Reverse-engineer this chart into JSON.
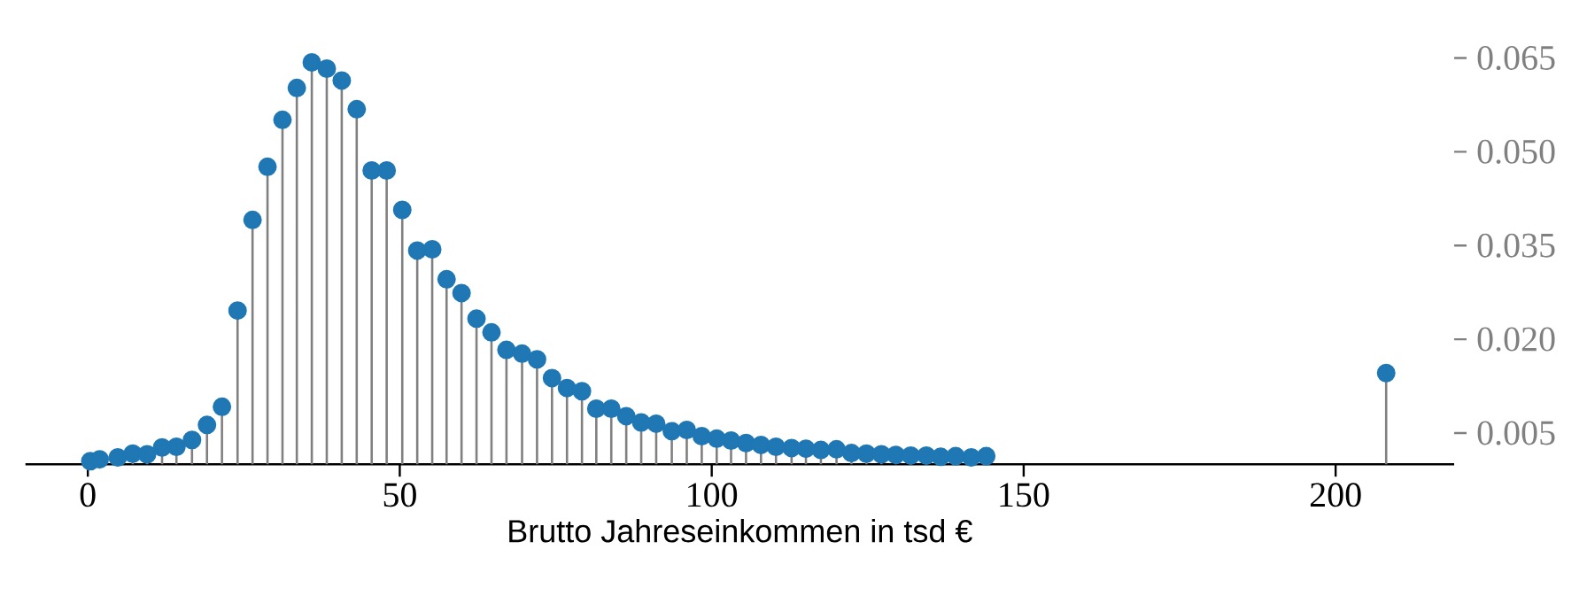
{
  "chart_data": {
    "type": "lollipop",
    "xlabel": "Brutto Jahreseinkommen in tsd €",
    "x": [
      0.4,
      1.9,
      4.8,
      7.2,
      9.5,
      11.9,
      14.2,
      16.7,
      19.1,
      21.5,
      24.0,
      26.4,
      28.8,
      31.2,
      33.5,
      35.9,
      38.3,
      40.7,
      43.1,
      45.5,
      47.9,
      50.4,
      52.8,
      55.2,
      57.5,
      59.9,
      62.3,
      64.7,
      67.1,
      69.6,
      72.0,
      74.4,
      76.8,
      79.2,
      81.5,
      83.9,
      86.3,
      88.7,
      91.1,
      93.6,
      96.0,
      98.4,
      100.8,
      103.1,
      105.5,
      107.9,
      110.3,
      112.8,
      115.1,
      117.5,
      120.0,
      122.4,
      124.8,
      127.2,
      129.5,
      131.9,
      134.4,
      136.7,
      139.1,
      141.6,
      144.0,
      208.1
    ],
    "values": [
      0.0005,
      0.0008,
      0.0011,
      0.0017,
      0.0016,
      0.0027,
      0.0028,
      0.0039,
      0.0063,
      0.0092,
      0.0246,
      0.0391,
      0.0476,
      0.0551,
      0.0602,
      0.0643,
      0.0633,
      0.0614,
      0.0568,
      0.047,
      0.047,
      0.0407,
      0.0342,
      0.0344,
      0.0296,
      0.0274,
      0.0233,
      0.0211,
      0.0183,
      0.0177,
      0.0168,
      0.0138,
      0.0122,
      0.0117,
      0.0089,
      0.0089,
      0.0077,
      0.0067,
      0.0065,
      0.0053,
      0.0055,
      0.0045,
      0.0041,
      0.0038,
      0.0034,
      0.0031,
      0.0028,
      0.0026,
      0.0025,
      0.0023,
      0.0024,
      0.0018,
      0.0017,
      0.0016,
      0.0015,
      0.0014,
      0.0014,
      0.0012,
      0.0013,
      0.0011,
      0.0013,
      0.0146
    ],
    "color": "#1f77b4",
    "marker": "circle",
    "xlim": [
      -10,
      219
    ],
    "ylim": [
      0,
      0.065
    ],
    "xticks": [
      0,
      50,
      100,
      150,
      200
    ],
    "yticks": [
      0.005,
      {
        "value": 0.02,
        "label": "0.020"
      },
      0.035,
      {
        "value": 0.05,
        "label": "0.050"
      },
      0.065
    ]
  }
}
